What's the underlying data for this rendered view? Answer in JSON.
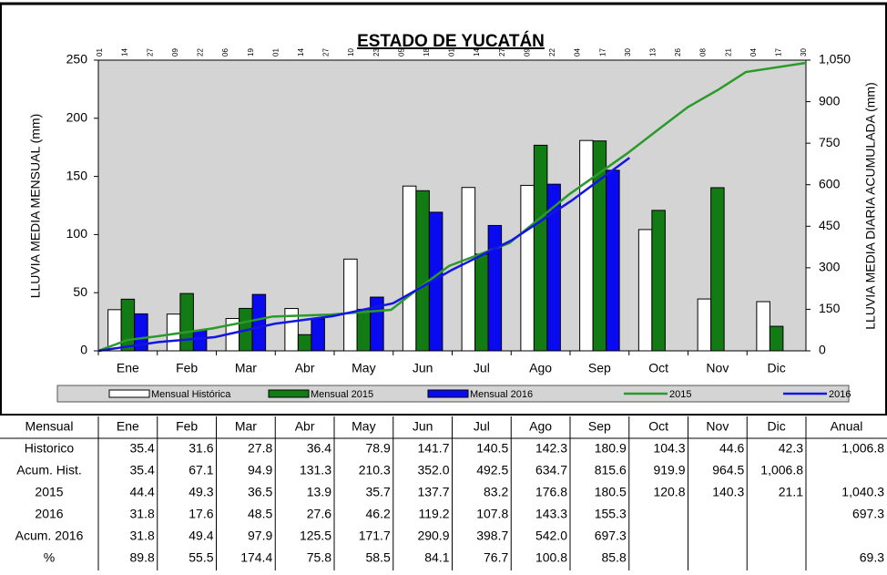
{
  "chart_data": {
    "type": "bar",
    "title": "ESTADO DE YUCATÁN",
    "ylabel": "LLUVIA MEDIA MENSUAL (mm)",
    "y2label": "LLUVIA MEDIA DIARIA ACUMULADA (mm)",
    "categories": [
      "Ene",
      "Feb",
      "Mar",
      "Abr",
      "May",
      "Jun",
      "Jul",
      "Ago",
      "Sep",
      "Oct",
      "Nov",
      "Dic"
    ],
    "top_ticks": [
      "01",
      "14",
      "27",
      "09",
      "22",
      "06",
      "19",
      "01",
      "14",
      "27",
      "10",
      "23",
      "05",
      "18",
      "01",
      "14",
      "27",
      "09",
      "22",
      "04",
      "17",
      "30",
      "13",
      "26",
      "08",
      "21",
      "04",
      "17",
      "30"
    ],
    "ylim": [
      0,
      250
    ],
    "yticks": [
      0,
      50,
      100,
      150,
      200,
      250
    ],
    "y2lim": [
      0,
      1050
    ],
    "y2ticks": [
      0,
      150,
      300,
      450,
      600,
      750,
      900,
      {
        "value": 1050,
        "label": "1,050"
      }
    ],
    "xlim": [
      0,
      365
    ],
    "series": [
      {
        "name": "Mensual Histórica",
        "kind": "bar",
        "color": "#ffffff",
        "values": [
          35.4,
          31.6,
          27.8,
          36.4,
          78.9,
          141.7,
          140.5,
          142.3,
          180.9,
          104.3,
          44.6,
          42.3
        ]
      },
      {
        "name": "Mensual 2015",
        "kind": "bar",
        "color": "#137b13",
        "values": [
          44.4,
          49.3,
          36.5,
          13.9,
          35.7,
          137.7,
          83.2,
          176.8,
          180.5,
          120.8,
          140.3,
          21.1
        ]
      },
      {
        "name": "Mensual 2016",
        "kind": "bar",
        "color": "#0a0af0",
        "values": [
          31.8,
          17.6,
          48.5,
          27.6,
          46.2,
          119.2,
          107.8,
          143.3,
          155.3,
          null,
          null,
          null
        ]
      },
      {
        "name": "2015",
        "kind": "line",
        "axis": "y2",
        "color": "#2a9a2a",
        "x": [
          0,
          15,
          31,
          59,
          90,
          120,
          151,
          166,
          181,
          212,
          243,
          273,
          288,
          304,
          320,
          334,
          365
        ],
        "values": [
          0,
          39,
          53,
          81,
          124,
          131,
          148,
          230,
          307,
          389,
          566,
          714,
          795,
          880,
          944,
          1007,
          1040
        ]
      },
      {
        "name": "2016",
        "kind": "line",
        "axis": "y2",
        "color": "#1414e6",
        "x": [
          0,
          31,
          60,
          91,
          121,
          152,
          182,
          213,
          244,
          274
        ],
        "values": [
          0,
          31.8,
          49.4,
          97.9,
          125.5,
          171.7,
          290.9,
          398.7,
          542.0,
          697.3
        ]
      }
    ]
  },
  "table": {
    "header": [
      "Mensual",
      "Ene",
      "Feb",
      "Mar",
      "Abr",
      "May",
      "Jun",
      "Jul",
      "Ago",
      "Sep",
      "Oct",
      "Nov",
      "Dic",
      "Anual"
    ],
    "rows": [
      [
        "Historico",
        "35.4",
        "31.6",
        "27.8",
        "36.4",
        "78.9",
        "141.7",
        "140.5",
        "142.3",
        "180.9",
        "104.3",
        "44.6",
        "42.3",
        "1,006.8"
      ],
      [
        "Acum. Hist.",
        "35.4",
        "67.1",
        "94.9",
        "131.3",
        "210.3",
        "352.0",
        "492.5",
        "634.7",
        "815.6",
        "919.9",
        "964.5",
        "1,006.8",
        null
      ],
      [
        "2015",
        "44.4",
        "49.3",
        "36.5",
        "13.9",
        "35.7",
        "137.7",
        "83.2",
        "176.8",
        "180.5",
        "120.8",
        "140.3",
        "21.1",
        "1,040.3"
      ],
      [
        "2016",
        "31.8",
        "17.6",
        "48.5",
        "27.6",
        "46.2",
        "119.2",
        "107.8",
        "143.3",
        "155.3",
        null,
        null,
        null,
        "697.3"
      ],
      [
        "Acum. 2016",
        "31.8",
        "49.4",
        "97.9",
        "125.5",
        "171.7",
        "290.9",
        "398.7",
        "542.0",
        "697.3",
        null,
        null,
        null,
        null
      ],
      [
        "%",
        "89.8",
        "55.5",
        "174.4",
        "75.8",
        "58.5",
        "84.1",
        "76.7",
        "100.8",
        "85.8",
        null,
        null,
        null,
        "69.3"
      ]
    ]
  }
}
